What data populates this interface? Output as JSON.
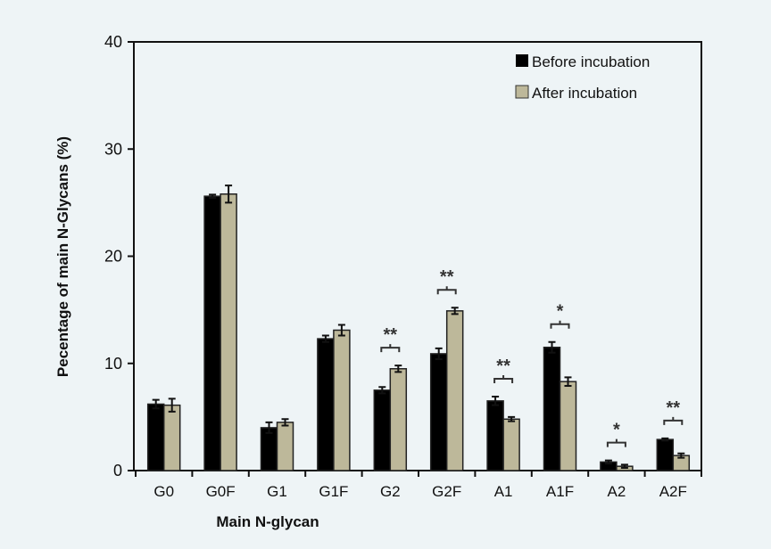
{
  "chart_data": {
    "type": "bar",
    "title": "",
    "xlabel": "Main N-glycan",
    "ylabel": "Pecentage of main N-Glycans (%)",
    "ylim": [
      0,
      40
    ],
    "yticks": [
      "0",
      "10",
      "20",
      "30",
      "40"
    ],
    "categories": [
      "G0",
      "G0F",
      "G1",
      "G1F",
      "G2",
      "G2F",
      "A1",
      "A1F",
      "A2",
      "A2F"
    ],
    "series": [
      {
        "name": "Before incubation",
        "color": "#000000",
        "values": [
          6.2,
          25.6,
          4.0,
          12.3,
          7.5,
          10.9,
          6.5,
          11.5,
          0.8,
          2.9
        ],
        "errors": [
          0.4,
          0.15,
          0.5,
          0.3,
          0.3,
          0.5,
          0.4,
          0.5,
          0.15,
          0.1
        ]
      },
      {
        "name": "After incubation",
        "color": "#bdb89a",
        "values": [
          6.1,
          25.8,
          4.5,
          13.1,
          9.5,
          14.9,
          4.8,
          8.3,
          0.4,
          1.4
        ],
        "errors": [
          0.6,
          0.8,
          0.3,
          0.5,
          0.3,
          0.3,
          0.2,
          0.4,
          0.15,
          0.2
        ]
      }
    ],
    "significance": [
      "",
      "",
      "",
      "",
      "**",
      "**",
      "**",
      "*",
      "*",
      "**"
    ],
    "legend_position": "top-right",
    "grid": false
  }
}
